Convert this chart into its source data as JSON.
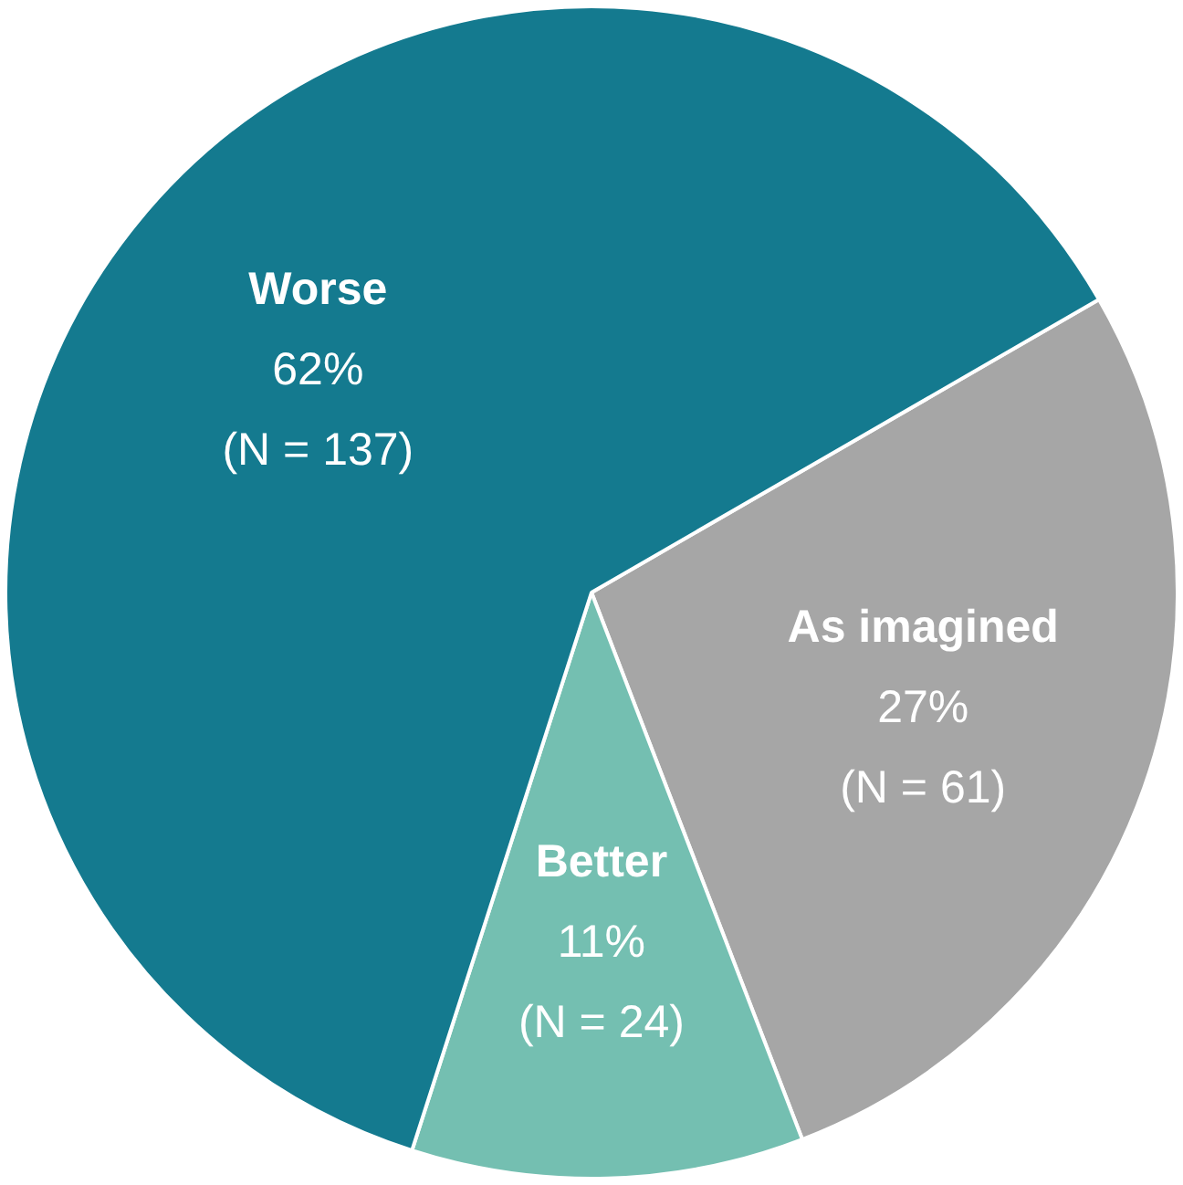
{
  "chart_data": {
    "type": "pie",
    "categories": [
      "As imagined",
      "Better",
      "Worse"
    ],
    "values": [
      61,
      24,
      137
    ],
    "colors": [
      "#a6a6a6",
      "#74bfb1",
      "#147a8f"
    ],
    "value_labels": [
      "27%\n(N = 61)",
      "11%\n(N = 24)",
      "62%\n(N = 137)"
    ],
    "legend": false
  }
}
